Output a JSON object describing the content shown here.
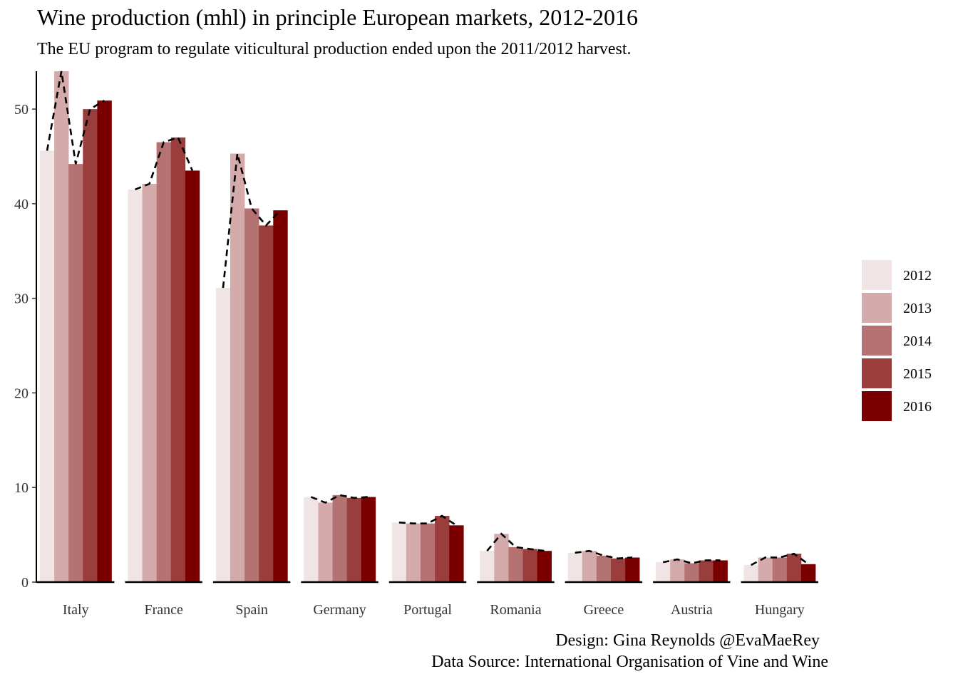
{
  "chart_data": {
    "type": "bar",
    "title": "Wine production (mhl) in principle European markets, 2012-2016",
    "subtitle": "The EU program to regulate viticultural production ended upon the 2011/2012 harvest.",
    "xlabel": "",
    "ylabel": "",
    "ylim": [
      0,
      54
    ],
    "yticks": [
      0,
      10,
      20,
      30,
      40,
      50
    ],
    "grid": false,
    "legend_position": "right",
    "categories": [
      "Italy",
      "France",
      "Spain",
      "Germany",
      "Portugal",
      "Romania",
      "Greece",
      "Austria",
      "Hungary"
    ],
    "series": [
      {
        "name": "2012",
        "color": "#f0e4e4",
        "values": [
          45.6,
          41.5,
          31.1,
          9.0,
          6.3,
          3.3,
          3.1,
          2.1,
          1.8
        ]
      },
      {
        "name": "2013",
        "color": "#d4aaaa",
        "values": [
          54.0,
          42.1,
          45.3,
          8.4,
          6.2,
          5.1,
          3.3,
          2.4,
          2.6
        ]
      },
      {
        "name": "2014",
        "color": "#b57272",
        "values": [
          44.2,
          46.5,
          39.5,
          9.2,
          6.2,
          3.7,
          2.8,
          2.0,
          2.6
        ]
      },
      {
        "name": "2015",
        "color": "#993d3d",
        "values": [
          50.0,
          47.0,
          37.7,
          8.9,
          7.0,
          3.5,
          2.5,
          2.3,
          3.0
        ]
      },
      {
        "name": "2016",
        "color": "#7a0000",
        "values": [
          50.9,
          43.5,
          39.3,
          9.0,
          6.0,
          3.3,
          2.6,
          2.3,
          1.9
        ]
      }
    ],
    "trend_line_style": "dashed",
    "trend_line_color": "#000000"
  },
  "caption": {
    "design": "Design: Gina Reynolds @EvaMaeRey",
    "source": "Data Source: International Organisation of Vine and Wine"
  }
}
